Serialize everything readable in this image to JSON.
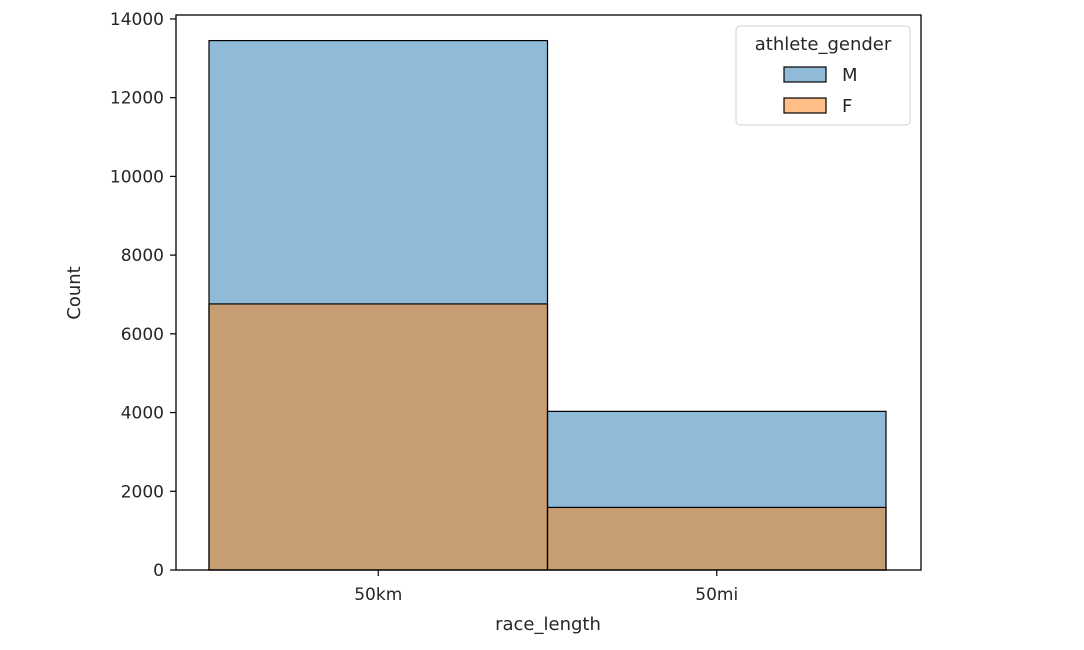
{
  "chart_data": {
    "type": "bar",
    "categories": [
      "50km",
      "50mi"
    ],
    "series": [
      {
        "name": "M",
        "values": [
          13450,
          4030
        ],
        "color": "#1f77b4"
      },
      {
        "name": "F",
        "values": [
          6760,
          1590
        ],
        "color": "#ff7f0e"
      }
    ],
    "overlap_color": "#8e9a9f",
    "xlabel": "race_length",
    "ylabel": "Count",
    "ylim": [
      0,
      14100
    ],
    "yticks": [
      0,
      2000,
      4000,
      6000,
      8000,
      10000,
      12000,
      14000
    ],
    "legend": {
      "title": "athlete_gender",
      "placement": "top-right"
    },
    "grid": false
  }
}
